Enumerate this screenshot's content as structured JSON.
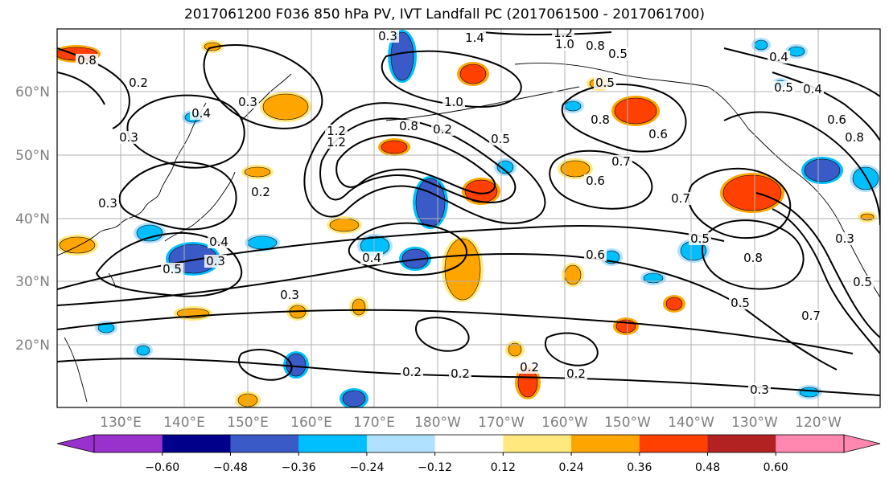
{
  "title": "2017061200 F036 850 hPa PV, IVT Landfall PC (2017061500 - 2017061700)",
  "colors": {
    "neg_extend": "#9932cc",
    "neg_060": "#00008b",
    "neg_048": "#3a5bc7",
    "neg_036": "#00bfff",
    "neg_024": "#b0e2ff",
    "neutral": "#ffffff",
    "pos_012": "#ffe97f",
    "pos_024": "#ffa500",
    "pos_036": "#ff4000",
    "pos_048": "#b22222",
    "pos_extend": "#ff88b0",
    "grid": "#b0b0b0",
    "contour": "#000000"
  },
  "latitude_labels": [
    "60°N",
    "50°N",
    "40°N",
    "30°N",
    "20°N"
  ],
  "longitude_labels": [
    "130°E",
    "140°E",
    "150°E",
    "160°E",
    "170°E",
    "180°W",
    "170°W",
    "160°W",
    "150°W",
    "140°W",
    "130°W",
    "120°W"
  ],
  "colorbar": {
    "tick_labels": [
      "−0.60",
      "−0.48",
      "−0.36",
      "−0.24",
      "−0.12",
      "0.12",
      "0.24",
      "0.36",
      "0.48",
      "0.60"
    ]
  },
  "contour_labels": [
    "0.8",
    "0.2",
    "0.3",
    "0.4",
    "0.3",
    "0.2",
    "0.3",
    "0.5",
    "0.3",
    "0.3",
    "1.4",
    "1.2",
    "1.0",
    "0.8",
    "0.5",
    "0.4",
    "0.5",
    "0.4",
    "0.5",
    "0.8",
    "1.2",
    "1.0",
    "1.2",
    "0.8",
    "0.2",
    "0.5",
    "0.4",
    "0.6",
    "0.7",
    "0.6",
    "0.7",
    "0.6",
    "0.5",
    "0.8",
    "0.5",
    "0.7",
    "0.3",
    "0.5",
    "0.2",
    "0.2",
    "0.2",
    "0.3",
    "0.2",
    "0.3",
    "0.4",
    "0.6",
    "0.8"
  ]
}
